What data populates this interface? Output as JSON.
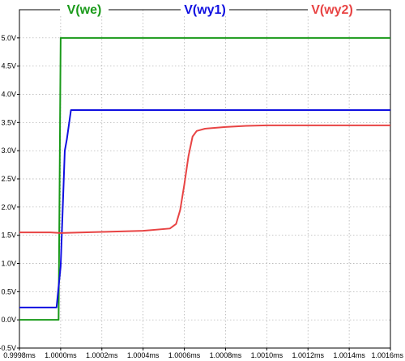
{
  "chart_data": {
    "type": "line",
    "grid": true,
    "xlim": [
      0.9998,
      1.0016
    ],
    "ylim": [
      -0.5,
      5.5
    ],
    "x_ticks": [
      {
        "value": 0.9998,
        "label": "0.9998ms"
      },
      {
        "value": 1.0,
        "label": "1.0000ms"
      },
      {
        "value": 1.0002,
        "label": "1.0002ms"
      },
      {
        "value": 1.0004,
        "label": "1.0004ms"
      },
      {
        "value": 1.0006,
        "label": "1.0006ms"
      },
      {
        "value": 1.0008,
        "label": "1.0008ms"
      },
      {
        "value": 1.001,
        "label": "1.0010ms"
      },
      {
        "value": 1.0012,
        "label": "1.0012ms"
      },
      {
        "value": 1.0014,
        "label": "1.0014ms"
      },
      {
        "value": 1.0016,
        "label": "1.0016ms"
      }
    ],
    "y_ticks": [
      {
        "value": 5.0,
        "label": "5.0V"
      },
      {
        "value": 4.5,
        "label": "4.5V"
      },
      {
        "value": 4.0,
        "label": "4.0V"
      },
      {
        "value": 3.5,
        "label": "3.5V"
      },
      {
        "value": 3.0,
        "label": "3.0V"
      },
      {
        "value": 2.5,
        "label": "2.5V"
      },
      {
        "value": 2.0,
        "label": "2.0V"
      },
      {
        "value": 1.5,
        "label": "1.5V"
      },
      {
        "value": 1.0,
        "label": "1.0V"
      },
      {
        "value": 0.5,
        "label": "0.5V"
      },
      {
        "value": 0.0,
        "label": "0.0V"
      },
      {
        "value": -0.5,
        "label": "-0.5V"
      }
    ],
    "legend_position": "top",
    "series": [
      {
        "name": "V(we)",
        "color": "#1a9a1a",
        "points": [
          [
            0.9998,
            0.0
          ],
          [
            0.99999,
            0.0
          ],
          [
            1.0,
            5.0
          ],
          [
            1.0016,
            5.0
          ]
        ]
      },
      {
        "name": "V(wy1)",
        "color": "#1010e0",
        "points": [
          [
            0.9998,
            0.22
          ],
          [
            0.99998,
            0.22
          ],
          [
            1.0,
            0.95
          ],
          [
            1.00002,
            3.0
          ],
          [
            1.00003,
            3.2
          ],
          [
            1.00005,
            3.72
          ],
          [
            1.0016,
            3.72
          ]
        ]
      },
      {
        "name": "V(wy2)",
        "color": "#e84444",
        "points": [
          [
            0.9998,
            1.55
          ],
          [
            0.99995,
            1.55
          ],
          [
            1.0,
            1.54
          ],
          [
            1.0002,
            1.56
          ],
          [
            1.0004,
            1.58
          ],
          [
            1.00053,
            1.62
          ],
          [
            1.00056,
            1.7
          ],
          [
            1.00058,
            1.95
          ],
          [
            1.0006,
            2.4
          ],
          [
            1.00062,
            2.9
          ],
          [
            1.00064,
            3.25
          ],
          [
            1.00066,
            3.35
          ],
          [
            1.0007,
            3.39
          ],
          [
            1.0008,
            3.42
          ],
          [
            1.0009,
            3.44
          ],
          [
            1.001,
            3.45
          ],
          [
            1.0016,
            3.45
          ]
        ]
      }
    ]
  }
}
